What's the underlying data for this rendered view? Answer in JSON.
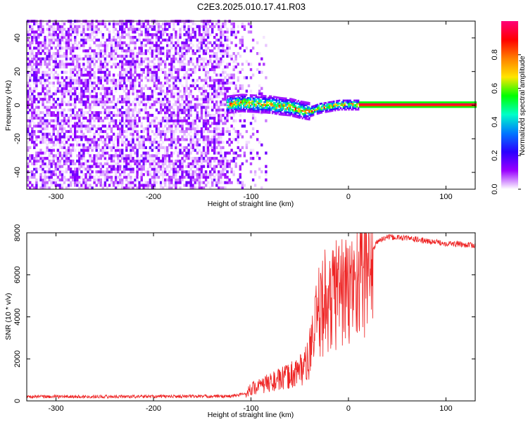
{
  "title": "C2E3.2025.010.17.41.R03",
  "chart_data": [
    {
      "type": "heatmap",
      "xlabel": "Height of straight line (km)",
      "ylabel": "Frequency (Hz)",
      "xlim": [
        -330,
        130
      ],
      "ylim": [
        -50,
        50
      ],
      "xticks": [
        -300,
        -200,
        -100,
        0,
        100
      ],
      "yticks": [
        -40,
        -20,
        0,
        20,
        40
      ],
      "colorbar": {
        "label": "Normalized spectral amplitude",
        "range": [
          0.0,
          1.0
        ],
        "ticks": [
          0.0,
          0.2,
          0.4,
          0.6,
          0.8
        ],
        "colormap": [
          "#ffffff",
          "#9a00ff",
          "#2a00ff",
          "#0078ff",
          "#00ffc8",
          "#00ff00",
          "#ffe600",
          "#ff8000",
          "#ff0000",
          "#ff0078"
        ]
      },
      "noise_region_km": [
        -330,
        -95
      ],
      "signal_line": {
        "x_start": -125,
        "x_end": 130,
        "freq_center": [
          [
            -125,
            0
          ],
          [
            -110,
            1
          ],
          [
            -95,
            0.5
          ],
          [
            -80,
            0
          ],
          [
            -70,
            -1
          ],
          [
            -60,
            -1.5
          ],
          [
            -50,
            -3
          ],
          [
            -40,
            -4
          ],
          [
            -30,
            -2
          ],
          [
            -20,
            -1
          ],
          [
            -10,
            0
          ],
          [
            0,
            0
          ],
          [
            130,
            0
          ]
        ]
      }
    },
    {
      "type": "line",
      "xlabel": "Height of straight line (km)",
      "ylabel": "SNR (10 * v/v)",
      "xlim": [
        -330,
        130
      ],
      "ylim": [
        0,
        8000
      ],
      "xticks": [
        -300,
        -200,
        -100,
        0,
        100
      ],
      "yticks": [
        0,
        2000,
        4000,
        6000,
        8000
      ],
      "color": "#ee2222",
      "series": [
        {
          "points": [
            [
              -330,
              200
            ],
            [
              -120,
              220
            ],
            [
              -105,
              350
            ],
            [
              -100,
              600
            ],
            [
              -90,
              700
            ],
            [
              -80,
              900
            ],
            [
              -70,
              1000
            ],
            [
              -60,
              1200
            ],
            [
              -50,
              1500
            ],
            [
              -42,
              1800
            ],
            [
              -35,
              3200
            ],
            [
              -30,
              4200
            ],
            [
              -25,
              4800
            ],
            [
              -20,
              4500
            ],
            [
              -10,
              5500
            ],
            [
              0,
              5000
            ],
            [
              10,
              6200
            ],
            [
              20,
              6800
            ],
            [
              30,
              7600
            ],
            [
              40,
              7800
            ],
            [
              60,
              7750
            ],
            [
              80,
              7600
            ],
            [
              100,
              7500
            ],
            [
              130,
              7400
            ]
          ]
        }
      ]
    }
  ]
}
